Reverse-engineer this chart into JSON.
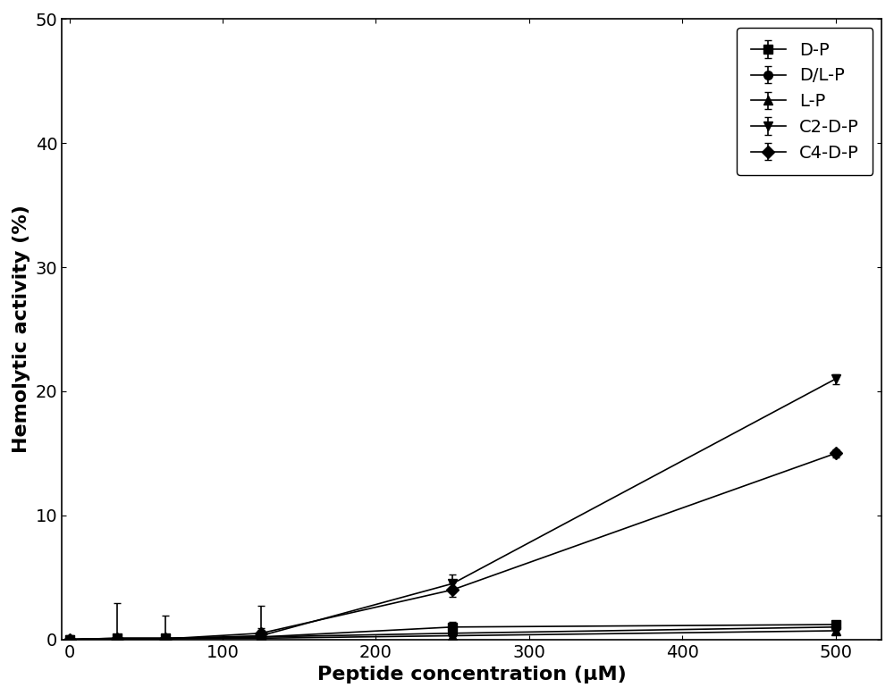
{
  "x": [
    0,
    31.25,
    62.5,
    125,
    250,
    500
  ],
  "series": [
    {
      "name": "D-P",
      "y": [
        0,
        0.1,
        0.1,
        0.2,
        1.0,
        1.2
      ],
      "yerr": [
        0,
        0.25,
        0.2,
        0.3,
        0.45,
        0.2
      ],
      "marker": "s"
    },
    {
      "name": "D/L-P",
      "y": [
        0,
        0.1,
        0.1,
        0.2,
        0.5,
        1.0
      ],
      "yerr": [
        0,
        2.8,
        1.8,
        2.5,
        0.8,
        0.2
      ],
      "marker": "o"
    },
    {
      "name": "L-P",
      "y": [
        0,
        0.05,
        0.05,
        0.1,
        0.3,
        0.7
      ],
      "yerr": [
        0,
        0.1,
        0.1,
        0.2,
        0.3,
        0.2
      ],
      "marker": "^"
    },
    {
      "name": "C2-D-P",
      "y": [
        0,
        0.05,
        0.05,
        0.3,
        4.5,
        21.0
      ],
      "yerr": [
        0,
        0.1,
        0.1,
        0.5,
        0.7,
        0.4
      ],
      "marker": "v"
    },
    {
      "name": "C4-D-P",
      "y": [
        0,
        0.05,
        0.05,
        0.5,
        4.0,
        15.0
      ],
      "yerr": [
        0,
        0.1,
        0.1,
        0.4,
        0.6,
        0.3
      ],
      "marker": "D"
    }
  ],
  "xlabel": "Peptide concentration (μM)",
  "ylabel": "Hemolytic activity (%)",
  "xlim": [
    -5,
    530
  ],
  "ylim": [
    0,
    50
  ],
  "yticks": [
    0,
    10,
    20,
    30,
    40,
    50
  ],
  "xticks": [
    0,
    100,
    200,
    300,
    400,
    500
  ],
  "color": "#000000",
  "linewidth": 1.2,
  "markersize": 7,
  "capsize": 3,
  "legend_loc": "upper right",
  "legend_fontsize": 14,
  "axis_fontsize": 16,
  "tick_fontsize": 14
}
